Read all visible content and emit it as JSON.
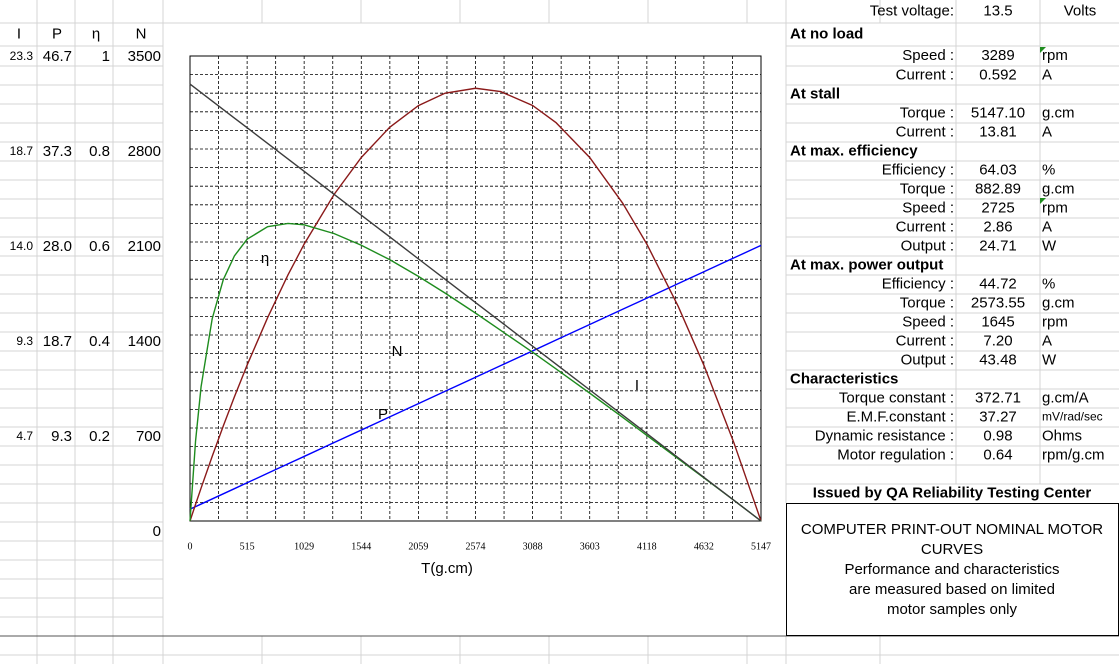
{
  "chart_data": {
    "type": "line",
    "x_label": "T(g.cm)",
    "x": [
      0,
      50,
      100,
      200,
      300,
      400,
      515,
      700,
      883,
      1029,
      1300,
      1544,
      1800,
      2059,
      2300,
      2574,
      2800,
      3088,
      3300,
      3603,
      3900,
      4118,
      4400,
      4632,
      4900,
      5147
    ],
    "xlim": [
      0,
      5147
    ],
    "xticks": [
      0,
      515,
      1029,
      1544,
      2059,
      2574,
      3088,
      3603,
      4118,
      4632,
      5147
    ],
    "y_axes": [
      {
        "name": "I",
        "ylim": [
          0,
          23.3
        ],
        "yticks": [
          4.7,
          9.3,
          {
            "value": 14,
            "label": "14.0"
          },
          18.7,
          23.3
        ]
      },
      {
        "name": "P",
        "ylim": [
          0,
          46.7
        ],
        "yticks": [
          9.3,
          18.7,
          {
            "value": 28,
            "label": "28.0"
          },
          37.3,
          46.7
        ]
      },
      {
        "name": "η",
        "ylim": [
          0,
          1
        ],
        "yticks": [
          0.2,
          0.4,
          0.6,
          0.8,
          1
        ]
      },
      {
        "name": "N",
        "ylim": [
          0,
          3500
        ],
        "yticks": [
          0,
          700,
          1400,
          2100,
          2800,
          3500
        ]
      }
    ],
    "series": [
      {
        "name": "I",
        "color": "#0000ff",
        "axis": 0,
        "values": [
          0.592,
          0.72,
          0.849,
          1.106,
          1.362,
          1.619,
          1.915,
          2.39,
          2.86,
          3.235,
          3.931,
          4.557,
          5.215,
          5.88,
          6.499,
          7.202,
          7.783,
          8.522,
          9.067,
          9.845,
          10.608,
          11.167,
          11.892,
          12.487,
          13.176,
          13.81
        ]
      },
      {
        "name": "P",
        "color": "#8b1a1a",
        "axis": 1,
        "values": [
          0,
          1.67,
          3.31,
          6.49,
          9.54,
          12.46,
          15.66,
          20.43,
          24.71,
          27.81,
          32.82,
          36.51,
          39.54,
          41.72,
          42.97,
          43.46,
          43.13,
          41.73,
          40.0,
          36.51,
          31.92,
          27.81,
          21.57,
          15.65,
          7.94,
          0
        ]
      },
      {
        "name": "η",
        "color": "#1e8c1e",
        "axis": 2,
        "values": [
          0,
          0.172,
          0.289,
          0.435,
          0.519,
          0.57,
          0.606,
          0.633,
          0.64,
          0.637,
          0.618,
          0.593,
          0.562,
          0.526,
          0.49,
          0.447,
          0.41,
          0.363,
          0.327,
          0.275,
          0.223,
          0.184,
          0.134,
          0.093,
          0.045,
          0
        ]
      },
      {
        "name": "N",
        "color": "#3c3c3c",
        "axis": 3,
        "values": [
          3289,
          3257,
          3225,
          3161,
          3097,
          3033,
          2960,
          2842,
          2725,
          2632,
          2458,
          2302,
          2139,
          1973,
          1819,
          1644,
          1500,
          1316,
          1180,
          987,
          797,
          658,
          477,
          329,
          158,
          0
        ]
      }
    ],
    "grid": true
  },
  "specs": {
    "test_voltage": {
      "label": "Test voltage:",
      "value": "13.5",
      "unit": "Volts"
    },
    "sections": [
      {
        "title": "At no load",
        "rows": [
          {
            "label": "Speed :",
            "value": "3289",
            "unit": "rpm"
          },
          {
            "label": "Current :",
            "value": "0.592",
            "unit": "A"
          }
        ]
      },
      {
        "title": "At stall",
        "rows": [
          {
            "label": "Torque :",
            "value": "5147.10",
            "unit": "g.cm"
          },
          {
            "label": "Current :",
            "value": "13.81",
            "unit": "A"
          }
        ]
      },
      {
        "title": "At max. efficiency",
        "rows": [
          {
            "label": "Efficiency :",
            "value": "64.03",
            "unit": "%"
          },
          {
            "label": "Torque :",
            "value": "882.89",
            "unit": "g.cm"
          },
          {
            "label": "Speed :",
            "value": "2725",
            "unit": "rpm"
          },
          {
            "label": "Current :",
            "value": "2.86",
            "unit": "A"
          },
          {
            "label": "Output :",
            "value": "24.71",
            "unit": "W"
          }
        ]
      },
      {
        "title": "At max. power output",
        "rows": [
          {
            "label": "Efficiency :",
            "value": "44.72",
            "unit": "%"
          },
          {
            "label": "Torque :",
            "value": "2573.55",
            "unit": "g.cm"
          },
          {
            "label": "Speed :",
            "value": "1645",
            "unit": "rpm"
          },
          {
            "label": "Current :",
            "value": "7.20",
            "unit": "A"
          },
          {
            "label": "Output :",
            "value": "43.48",
            "unit": "W"
          }
        ]
      },
      {
        "title": "Characteristics",
        "rows": [
          {
            "label": "Torque constant :",
            "value": "372.71",
            "unit": "g.cm/A"
          },
          {
            "label": "E.M.F.constant :",
            "value": "37.27",
            "unit": "mV/rad/sec"
          },
          {
            "label": "Dynamic resistance :",
            "value": "0.98",
            "unit": "Ohms"
          },
          {
            "label": "Motor regulation :",
            "value": "0.64",
            "unit": "rpm/g.cm"
          }
        ]
      }
    ]
  },
  "issuer": "Issued by QA Reliability Testing Center",
  "note": [
    "COMPUTER PRINT-OUT NOMINAL MOTOR",
    "CURVES",
    "Performance and characteristics",
    "are measured based on limited",
    "motor samples only"
  ]
}
